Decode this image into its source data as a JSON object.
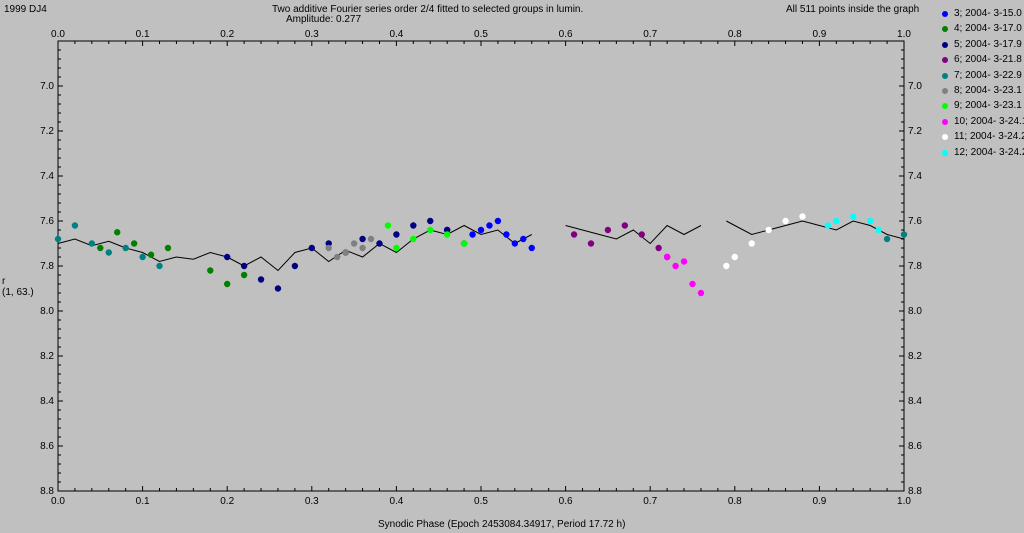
{
  "header": {
    "object_name": "1999 DJ4",
    "title_line1": "Two additive Fourier series order 2/4 fitted to selected groups in lumin.",
    "title_line2": "Amplitude: 0.277",
    "points_note": "All 511 points inside the graph"
  },
  "chart_data": {
    "type": "scatter",
    "title": "Two additive Fourier series order 2/4 fitted to selected groups in lumin.",
    "subtitle": "Amplitude: 0.277",
    "xlabel": "Synodic Phase (Epoch 2453084.34917, Period 17.72 h)",
    "ylabel": "r",
    "ylabel_sub": "(1, 63.)",
    "xlim": [
      0.0,
      1.0
    ],
    "ylim": [
      8.8,
      6.8
    ],
    "y_inverted": true,
    "x_ticks": [
      "0.0",
      "0.1",
      "0.2",
      "0.3",
      "0.4",
      "0.5",
      "0.6",
      "0.7",
      "0.8",
      "0.9",
      "1.0"
    ],
    "y_ticks": [
      "7.0",
      "7.2",
      "7.4",
      "7.6",
      "7.8",
      "8.0",
      "8.2",
      "8.4",
      "8.6",
      "8.8"
    ],
    "grid": false,
    "legend_position": "right",
    "series": [
      {
        "name": "3; 2004- 3-15.0",
        "color": "#0000ff",
        "x": [
          0.5,
          0.51,
          0.52,
          0.53,
          0.54,
          0.55,
          0.56,
          0.49,
          0.48,
          0.46
        ],
        "y": [
          7.64,
          7.62,
          7.6,
          7.66,
          7.7,
          7.68,
          7.72,
          7.66,
          7.7,
          7.64
        ]
      },
      {
        "name": "4; 2004- 3-17.0",
        "color": "#008000",
        "x": [
          0.05,
          0.07,
          0.09,
          0.11,
          0.13,
          0.18,
          0.2,
          0.22
        ],
        "y": [
          7.72,
          7.65,
          7.7,
          7.75,
          7.72,
          7.82,
          7.88,
          7.84
        ]
      },
      {
        "name": "5; 2004- 3-17.9",
        "color": "#000080",
        "x": [
          0.2,
          0.22,
          0.24,
          0.26,
          0.28,
          0.3,
          0.32,
          0.34,
          0.36,
          0.38,
          0.4,
          0.42,
          0.44,
          0.46
        ],
        "y": [
          7.76,
          7.8,
          7.86,
          7.9,
          7.8,
          7.72,
          7.7,
          7.74,
          7.68,
          7.7,
          7.66,
          7.62,
          7.6,
          7.64
        ]
      },
      {
        "name": "6; 2004- 3-21.8",
        "color": "#800080",
        "x": [
          0.61,
          0.63,
          0.65,
          0.67,
          0.69,
          0.71,
          0.72
        ],
        "y": [
          7.66,
          7.7,
          7.64,
          7.62,
          7.66,
          7.72,
          7.76
        ]
      },
      {
        "name": "7; 2004- 3-22.9",
        "color": "#008080",
        "x": [
          0.0,
          0.02,
          0.04,
          0.06,
          0.08,
          0.1,
          0.12,
          0.98,
          1.0
        ],
        "y": [
          7.68,
          7.62,
          7.7,
          7.74,
          7.72,
          7.76,
          7.8,
          7.68,
          7.66
        ]
      },
      {
        "name": "8; 2004- 3-23.1",
        "color": "#808080",
        "x": [
          0.32,
          0.33,
          0.34,
          0.35,
          0.36,
          0.37
        ],
        "y": [
          7.72,
          7.76,
          7.74,
          7.7,
          7.72,
          7.68
        ]
      },
      {
        "name": "9; 2004- 3-23.1",
        "color": "#00ff00",
        "x": [
          0.39,
          0.4,
          0.42,
          0.44,
          0.46,
          0.48
        ],
        "y": [
          7.62,
          7.72,
          7.68,
          7.64,
          7.66,
          7.7
        ]
      },
      {
        "name": "10; 2004- 3-24.1",
        "color": "#ff00ff",
        "x": [
          0.72,
          0.73,
          0.74,
          0.75,
          0.76
        ],
        "y": [
          7.76,
          7.8,
          7.78,
          7.88,
          7.92
        ]
      },
      {
        "name": "11; 2004- 3-24.2",
        "color": "#ffffff",
        "x": [
          0.79,
          0.8,
          0.82,
          0.84,
          0.86,
          0.88
        ],
        "y": [
          7.8,
          7.76,
          7.7,
          7.64,
          7.6,
          7.58
        ]
      },
      {
        "name": "12; 2004- 3-24.2",
        "color": "#00ffff",
        "x": [
          0.91,
          0.92,
          0.94,
          0.96,
          0.97
        ],
        "y": [
          7.62,
          7.6,
          7.58,
          7.6,
          7.64
        ]
      }
    ],
    "fit_curves": [
      {
        "x": [
          0.0,
          0.02,
          0.04,
          0.06,
          0.08,
          0.1,
          0.12,
          0.14,
          0.16,
          0.18,
          0.2,
          0.22,
          0.24,
          0.26,
          0.28,
          0.3,
          0.32,
          0.34,
          0.36,
          0.38,
          0.4,
          0.42,
          0.44,
          0.46,
          0.48,
          0.5,
          0.52,
          0.54,
          0.56
        ],
        "y": [
          7.7,
          7.68,
          7.71,
          7.69,
          7.72,
          7.74,
          7.78,
          7.76,
          7.77,
          7.74,
          7.76,
          7.8,
          7.76,
          7.82,
          7.74,
          7.72,
          7.78,
          7.73,
          7.76,
          7.7,
          7.74,
          7.68,
          7.64,
          7.66,
          7.62,
          7.66,
          7.64,
          7.7,
          7.66
        ]
      },
      {
        "x": [
          0.6,
          0.62,
          0.64,
          0.66,
          0.68,
          0.7,
          0.72,
          0.74,
          0.76
        ],
        "y": [
          7.62,
          7.64,
          7.66,
          7.68,
          7.64,
          7.7,
          7.62,
          7.66,
          7.62
        ]
      },
      {
        "x": [
          0.79,
          0.8,
          0.82,
          0.84,
          0.86,
          0.88,
          0.9,
          0.92,
          0.94,
          0.96,
          0.98,
          1.0
        ],
        "y": [
          7.6,
          7.62,
          7.66,
          7.64,
          7.62,
          7.6,
          7.62,
          7.64,
          7.6,
          7.62,
          7.66,
          7.68
        ]
      }
    ]
  }
}
